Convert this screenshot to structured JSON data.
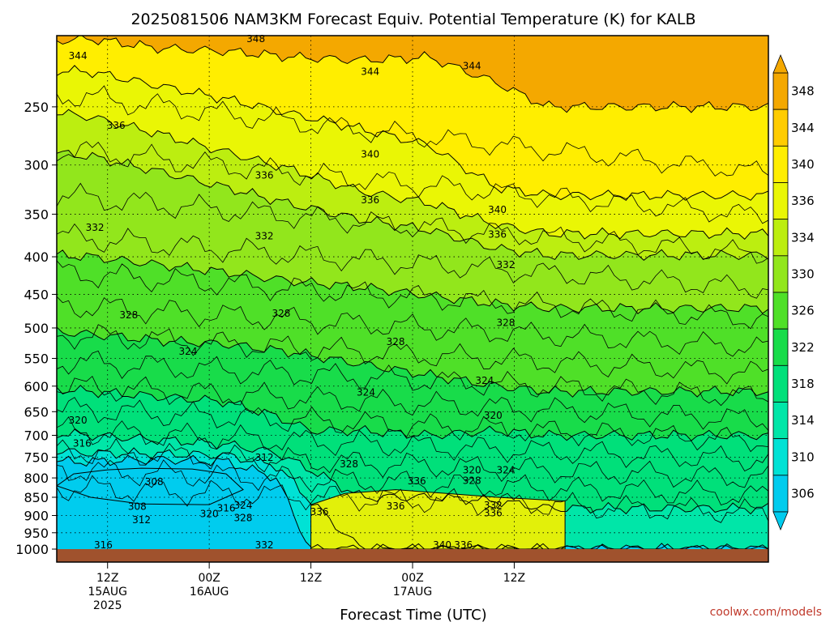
{
  "chart_data": {
    "type": "heatmap",
    "title": "2025081506 NAM3KM Forecast Equiv. Potential Temperature (K) for KALB",
    "xlabel": "Forecast Time (UTC)",
    "credit": "coolwx.com/models",
    "y_axis": {
      "scale": "log",
      "inverted": true,
      "range": [
        200,
        1000
      ],
      "ticks": [
        250,
        300,
        350,
        400,
        450,
        500,
        550,
        600,
        650,
        700,
        750,
        800,
        850,
        900,
        950,
        1000
      ]
    },
    "x_axis": {
      "range_hours": [
        0,
        84
      ],
      "ticks": [
        {
          "hour": 6,
          "line1": "12Z",
          "line2": "15AUG",
          "line3": "2025"
        },
        {
          "hour": 18,
          "line1": "00Z",
          "line2": "16AUG",
          "line3": ""
        },
        {
          "hour": 30,
          "line1": "12Z",
          "line2": "",
          "line3": ""
        },
        {
          "hour": 42,
          "line1": "00Z",
          "line2": "17AUG",
          "line3": ""
        },
        {
          "hour": 54,
          "line1": "12Z",
          "line2": "",
          "line3": ""
        }
      ]
    },
    "colorbar": {
      "levels": [
        306,
        310,
        314,
        318,
        322,
        326,
        330,
        334,
        336,
        340,
        344,
        348
      ],
      "colors": [
        "#00ccee",
        "#00e2d5",
        "#00e6a8",
        "#00e07a",
        "#18dc4a",
        "#4fe028",
        "#92e61c",
        "#bcee10",
        "#eaf605",
        "#ffee00",
        "#ffcc00",
        "#f4a800"
      ]
    },
    "contour_labels": [
      {
        "t": 23.5,
        "p": 202,
        "v": "348"
      },
      {
        "t": 2.5,
        "p": 213,
        "v": "344"
      },
      {
        "t": 37,
        "p": 224,
        "v": "344"
      },
      {
        "t": 49,
        "p": 220,
        "v": "344"
      },
      {
        "t": 7,
        "p": 265,
        "v": "336"
      },
      {
        "t": 37,
        "p": 290,
        "v": "340"
      },
      {
        "t": 24.5,
        "p": 310,
        "v": "336"
      },
      {
        "t": 37,
        "p": 335,
        "v": "336"
      },
      {
        "t": 52,
        "p": 345,
        "v": "340"
      },
      {
        "t": 52,
        "p": 373,
        "v": "336"
      },
      {
        "t": 4.5,
        "p": 365,
        "v": "332"
      },
      {
        "t": 24.5,
        "p": 375,
        "v": "332"
      },
      {
        "t": 53,
        "p": 410,
        "v": "332"
      },
      {
        "t": 8.5,
        "p": 480,
        "v": "328"
      },
      {
        "t": 26.5,
        "p": 478,
        "v": "328"
      },
      {
        "t": 40,
        "p": 522,
        "v": "328"
      },
      {
        "t": 53,
        "p": 492,
        "v": "328"
      },
      {
        "t": 15.5,
        "p": 538,
        "v": "324"
      },
      {
        "t": 36.5,
        "p": 612,
        "v": "324"
      },
      {
        "t": 50.5,
        "p": 590,
        "v": "324"
      },
      {
        "t": 2.5,
        "p": 668,
        "v": "320"
      },
      {
        "t": 51.5,
        "p": 658,
        "v": "320"
      },
      {
        "t": 3,
        "p": 718,
        "v": "316"
      },
      {
        "t": 1,
        "p": 764,
        "v": "312"
      },
      {
        "t": 24.5,
        "p": 751,
        "v": "312"
      },
      {
        "t": 34.5,
        "p": 766,
        "v": "328"
      },
      {
        "t": 11.5,
        "p": 810,
        "v": "308"
      },
      {
        "t": 49,
        "p": 781,
        "v": "320"
      },
      {
        "t": 53,
        "p": 781,
        "v": "324"
      },
      {
        "t": 49,
        "p": 807,
        "v": "328"
      },
      {
        "t": 42.5,
        "p": 808,
        "v": "336"
      },
      {
        "t": 22,
        "p": 872,
        "v": "324"
      },
      {
        "t": 9.5,
        "p": 875,
        "v": "308"
      },
      {
        "t": 20,
        "p": 880,
        "v": "316"
      },
      {
        "t": 18,
        "p": 895,
        "v": "320"
      },
      {
        "t": 22,
        "p": 907,
        "v": "328"
      },
      {
        "t": 10,
        "p": 913,
        "v": "312"
      },
      {
        "t": 40,
        "p": 874,
        "v": "336"
      },
      {
        "t": 31,
        "p": 890,
        "v": "336"
      },
      {
        "t": 51.5,
        "p": 872,
        "v": "332"
      },
      {
        "t": 51.5,
        "p": 893,
        "v": "336"
      },
      {
        "t": 0.5,
        "p": 943,
        "v": "320"
      },
      {
        "t": -2,
        "p": 982,
        "v": "324"
      },
      {
        "t": 5.5,
        "p": 987,
        "v": "316"
      },
      {
        "t": 24.5,
        "p": 987,
        "v": "332"
      },
      {
        "t": 45.5,
        "p": 987,
        "v": "340"
      },
      {
        "t": 48,
        "p": 987,
        "v": "336"
      }
    ]
  }
}
